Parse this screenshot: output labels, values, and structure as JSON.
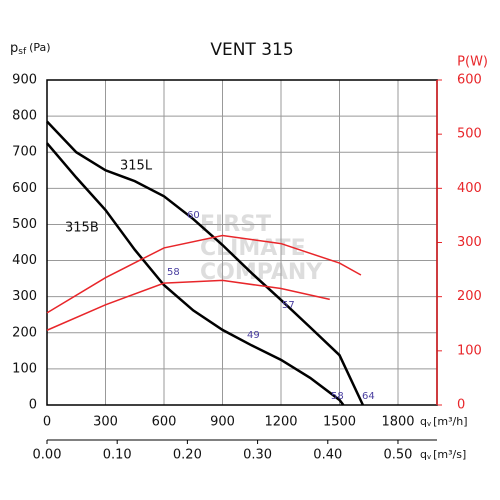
{
  "chart_data": {
    "type": "line",
    "title": "VENT 315",
    "y_label": {
      "main": "p",
      "sub": "sf",
      "unit": "(Pa)"
    },
    "y2_label": "P(W)",
    "x_label": {
      "main": "q",
      "sub": "v",
      "unit": "[m³/h]"
    },
    "x2_label": {
      "main": "q",
      "sub": "v",
      "unit": "[m³/s]"
    },
    "xlim": [
      0,
      2000
    ],
    "xticks": [
      0,
      300,
      600,
      900,
      1200,
      1500,
      1800
    ],
    "x2lim": [
      0,
      0.5556
    ],
    "x2ticks": [
      {
        "value": 0,
        "label": "0.00"
      },
      {
        "value": 0.1,
        "label": "0.10"
      },
      {
        "value": 0.2,
        "label": "0.20"
      },
      {
        "value": 0.3,
        "label": "0.30"
      },
      {
        "value": 0.4,
        "label": "0.40"
      },
      {
        "value": 0.5,
        "label": "0.50"
      }
    ],
    "ylim": [
      0,
      900
    ],
    "yticks": [
      0,
      100,
      200,
      300,
      400,
      500,
      600,
      700,
      800,
      900
    ],
    "y2lim": [
      0,
      600
    ],
    "y2ticks": [
      0,
      100,
      200,
      300,
      400,
      500,
      600
    ],
    "grid": true,
    "series": [
      {
        "name": "315L",
        "color": "#000000",
        "x": [
          0,
          150,
          300,
          450,
          600,
          750,
          900,
          1050,
          1200,
          1350,
          1500,
          1620
        ],
        "values": [
          785,
          700,
          650,
          620,
          578,
          515,
          443,
          365,
          291,
          215,
          138,
          0
        ]
      },
      {
        "name": "315B",
        "color": "#000000",
        "x": [
          0,
          150,
          300,
          450,
          600,
          750,
          900,
          1050,
          1200,
          1350,
          1500,
          1520
        ],
        "values": [
          725,
          630,
          540,
          430,
          332,
          262,
          208,
          165,
          125,
          75,
          14,
          0
        ]
      },
      {
        "axis": "y2",
        "color": "#e8262a",
        "x": [
          0,
          300,
          600,
          900,
          1200,
          1500,
          1610
        ],
        "values": [
          170,
          235,
          290,
          313,
          298,
          262,
          240
        ]
      },
      {
        "axis": "y2",
        "color": "#e8262a",
        "x": [
          0,
          300,
          600,
          900,
          1200,
          1450
        ],
        "values": [
          138,
          185,
          225,
          230,
          215,
          195
        ]
      }
    ],
    "annotations": [
      "60",
      "58",
      "57",
      "49",
      "58",
      "64"
    ],
    "watermark": [
      "FIRST",
      "CLIMATE",
      "COMPANY"
    ]
  }
}
